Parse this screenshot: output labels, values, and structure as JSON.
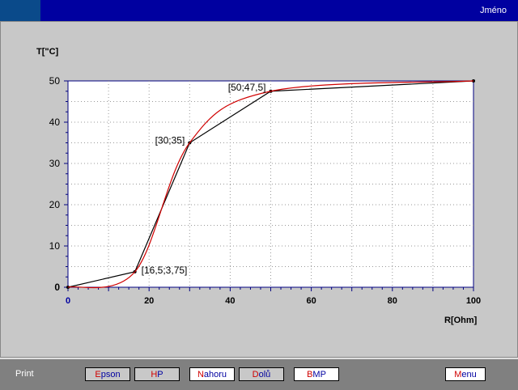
{
  "header": {
    "name_label": "Jméno"
  },
  "chart_data": {
    "type": "line",
    "xlabel": "R[Ohm]",
    "ylabel": "T[\"C]",
    "xlim": [
      0,
      100
    ],
    "ylim": [
      0,
      50
    ],
    "x_ticks": [
      "0",
      "20",
      "40",
      "60",
      "80",
      "100"
    ],
    "y_ticks": [
      "0",
      "10",
      "20",
      "30",
      "40",
      "50"
    ],
    "grid": true,
    "series": [
      {
        "color": "#000000",
        "style": "piecewise linear",
        "x": [
          0,
          16.5,
          30,
          50,
          100
        ],
        "y": [
          0,
          3.75,
          35,
          47.5,
          50
        ]
      },
      {
        "color": "#d00000",
        "style": "smooth fit",
        "x": [
          0,
          16.5,
          30,
          50,
          100
        ],
        "y": [
          0,
          3.75,
          35,
          47.5,
          50
        ]
      }
    ],
    "annotations": [
      "[16,5;3,75]",
      "[30;35]",
      "[50;47,5]"
    ]
  },
  "footer": {
    "print_label": "Print",
    "buttons": [
      {
        "first": "E",
        "rest": "pson"
      },
      {
        "first": "H",
        "rest": "P"
      },
      {
        "first": "N",
        "rest": "ahoru"
      },
      {
        "first": "D",
        "rest": "olů"
      },
      {
        "first": "B",
        "rest": "MP"
      },
      {
        "first": "M",
        "rest": "enu"
      }
    ]
  }
}
